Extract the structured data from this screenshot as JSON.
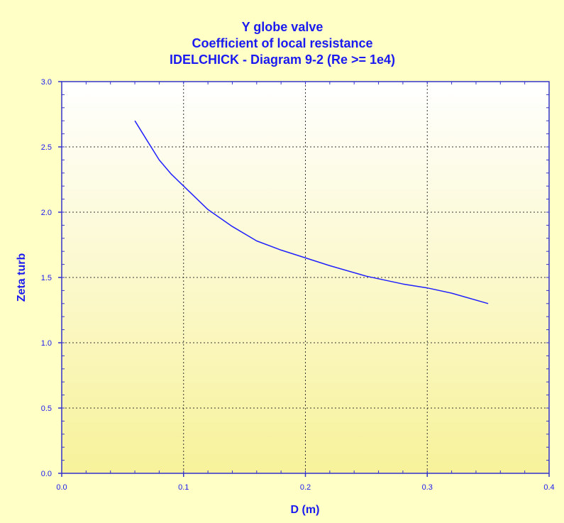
{
  "chart_data": {
    "type": "line",
    "title": [
      "Y globe valve",
      "Coefficient of local resistance",
      "IDELCHICK - Diagram 9-2 (Re >= 1e4)"
    ],
    "xlabel": "D (m)",
    "ylabel": "Zeta turb",
    "xlim": [
      0.0,
      0.4
    ],
    "ylim": [
      0.0,
      3.0
    ],
    "xticks": [
      0.0,
      0.1,
      0.2,
      0.3,
      0.4
    ],
    "xtick_labels": [
      "0.0",
      "0.1",
      "0.2",
      "0.3",
      "0.4"
    ],
    "yticks": [
      0.0,
      0.5,
      1.0,
      1.5,
      2.0,
      2.5,
      3.0
    ],
    "ytick_labels": [
      "0.0",
      "0.5",
      "1.0",
      "1.5",
      "2.0",
      "2.5",
      "3.0"
    ],
    "grid": true,
    "legend": "none",
    "series": [
      {
        "x": [
          0.06,
          0.07,
          0.08,
          0.09,
          0.1,
          0.12,
          0.14,
          0.16,
          0.18,
          0.2,
          0.22,
          0.25,
          0.28,
          0.3,
          0.32,
          0.35
        ],
        "y": [
          2.7,
          2.55,
          2.4,
          2.29,
          2.2,
          2.02,
          1.89,
          1.78,
          1.71,
          1.65,
          1.59,
          1.51,
          1.45,
          1.42,
          1.38,
          1.3
        ]
      }
    ],
    "colors": {
      "background": "#FFFFC6",
      "plot_top": "#FFFFFF",
      "plot_bottom": "#F7F29A",
      "text": "#1A1AF0",
      "line": "#2020FF",
      "axis": "#3333CC",
      "grid": "#333333"
    }
  }
}
